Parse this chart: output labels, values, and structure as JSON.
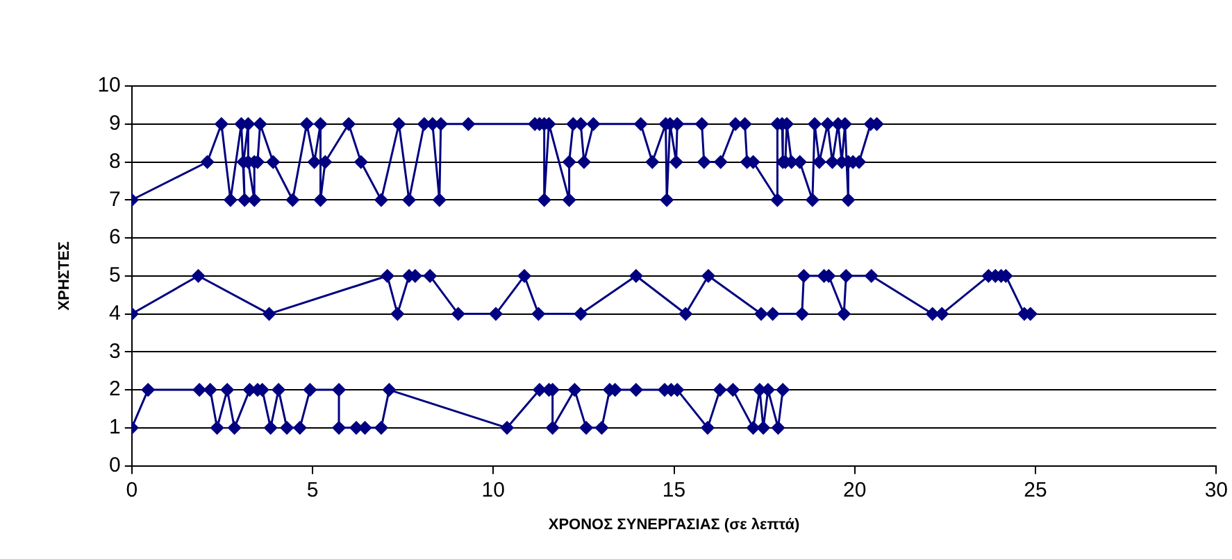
{
  "chart_data": {
    "type": "line",
    "xlabel": "ΧΡΟΝΟΣ ΣΥΝΕΡΓΑΣΙΑΣ (σε λεπτά)",
    "ylabel": "ΧΡΗΣΤΕΣ",
    "xlim": [
      0,
      30
    ],
    "xticks": [
      0,
      5,
      10,
      15,
      20,
      25,
      30
    ],
    "ylim": [
      0,
      10
    ],
    "yticks": [
      0,
      1,
      2,
      3,
      4,
      5,
      6,
      7,
      8,
      9,
      10
    ],
    "grid": "y",
    "legend": false,
    "marker": "diamond",
    "line_style": "solid",
    "series": [
      {
        "color": "#000080",
        "x": [
          0,
          0.45,
          1.87,
          2.17,
          2.36,
          2.64,
          2.84,
          3.26,
          3.48,
          3.61,
          3.84,
          4.06,
          4.29,
          4.65,
          4.93,
          5.73,
          5.73,
          6.21,
          6.45,
          6.9,
          7.12,
          10.38,
          11.28,
          11.54,
          11.64,
          11.64,
          12.25,
          12.57,
          13.0,
          13.22,
          13.37,
          13.95,
          14.74,
          14.92,
          15.09,
          15.93,
          16.27,
          16.63,
          17.19,
          17.37,
          17.47,
          17.6,
          17.88,
          18.01
        ],
        "values": [
          1,
          2,
          2,
          2,
          1,
          2,
          1,
          2,
          2,
          2,
          1,
          2,
          1,
          1,
          2,
          2,
          1,
          1,
          1,
          1,
          2,
          1,
          2,
          2,
          2,
          1,
          2,
          1,
          1,
          2,
          2,
          2,
          2,
          2,
          2,
          1,
          2,
          2,
          1,
          2,
          1,
          2,
          1,
          2
        ]
      },
      {
        "color": "#000080",
        "x": [
          0,
          1.84,
          3.8,
          7.07,
          7.35,
          7.67,
          7.84,
          8.25,
          9.03,
          10.07,
          10.86,
          11.25,
          12.42,
          13.95,
          15.32,
          15.95,
          17.41,
          17.73,
          18.54,
          18.59,
          19.15,
          19.28,
          19.7,
          19.76,
          20.46,
          22.15,
          22.41,
          23.7,
          23.89,
          24.05,
          24.18,
          24.69,
          24.86
        ],
        "values": [
          4,
          5,
          4,
          5,
          4,
          5,
          5,
          5,
          4,
          4,
          5,
          4,
          4,
          5,
          4,
          5,
          4,
          4,
          4,
          5,
          5,
          5,
          4,
          5,
          5,
          4,
          4,
          5,
          5,
          5,
          5,
          4,
          4
        ]
      },
      {
        "color": "#000080",
        "x": [
          0,
          2.09,
          2.48,
          2.73,
          3.03,
          3.12,
          3.09,
          3.22,
          3.22,
          3.39,
          3.39,
          3.48,
          3.55,
          3.91,
          4.45,
          4.84,
          5.05,
          5.22,
          5.22,
          5.35,
          6.0,
          6.34,
          6.9,
          7.39,
          7.67,
          8.09,
          8.32,
          8.51,
          8.55,
          9.31,
          11.15,
          11.28,
          11.41,
          11.41,
          11.54,
          12.1,
          12.1,
          12.21,
          12.42,
          12.51,
          12.77,
          14.08,
          14.4,
          14.77,
          14.8,
          14.89,
          15.06,
          15.09,
          15.77,
          15.83,
          16.29,
          16.7,
          16.96,
          17.02,
          17.19,
          17.86,
          17.86,
          17.99,
          18.01,
          18.08,
          18.12,
          18.25,
          18.48,
          18.83,
          18.89,
          19.02,
          19.25,
          19.38,
          19.54,
          19.64,
          19.73,
          19.82,
          19.82,
          19.95,
          20.12,
          20.44,
          20.61
        ],
        "values": [
          7,
          8,
          9,
          7,
          9,
          7,
          8,
          9,
          8,
          7,
          8,
          8,
          9,
          8,
          7,
          9,
          8,
          9,
          7,
          8,
          9,
          8,
          7,
          9,
          7,
          9,
          9,
          7,
          9,
          9,
          9,
          9,
          9,
          7,
          9,
          7,
          8,
          9,
          9,
          8,
          9,
          9,
          8,
          9,
          7,
          9,
          8,
          9,
          9,
          8,
          8,
          9,
          9,
          8,
          8,
          7,
          9,
          9,
          8,
          8,
          9,
          8,
          8,
          7,
          9,
          8,
          9,
          8,
          9,
          8,
          9,
          7,
          8,
          8,
          8,
          9,
          9
        ]
      }
    ]
  }
}
